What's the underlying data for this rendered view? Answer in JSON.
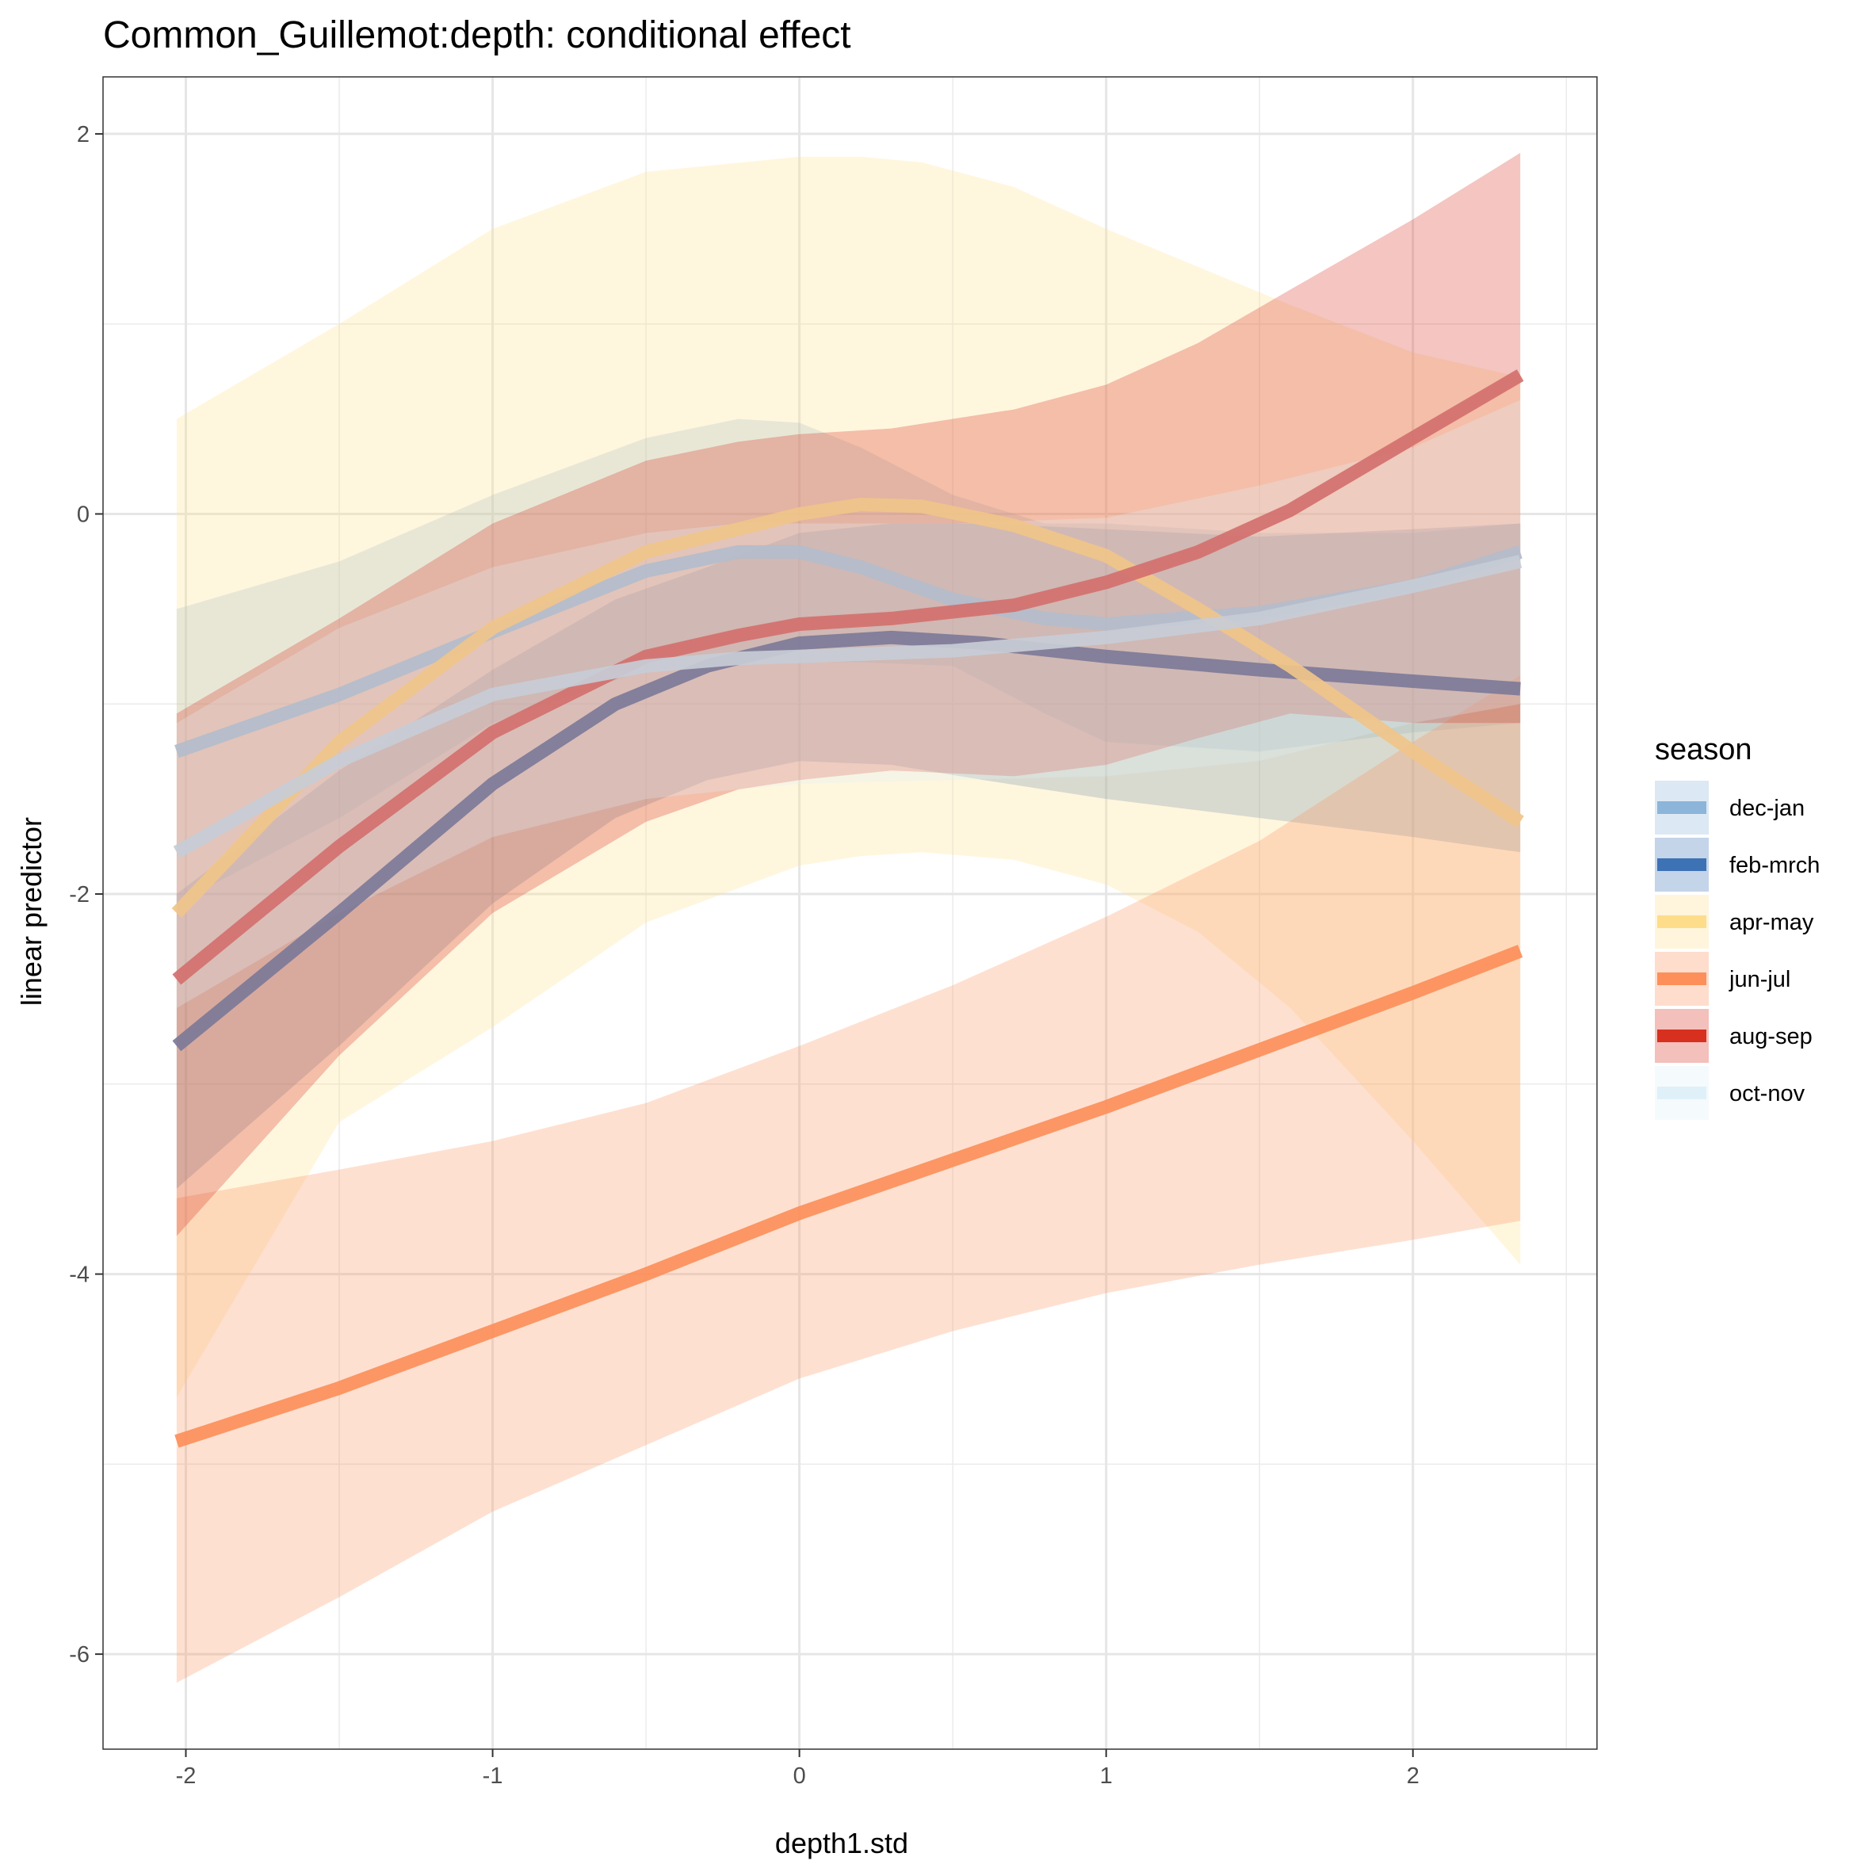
{
  "chart_data": {
    "type": "line",
    "title": "Common_Guillemot:depth: conditional effect",
    "xlabel": "depth1.std",
    "ylabel": "linear predictor",
    "xlim": [
      -2.27,
      2.6
    ],
    "ylim": [
      -6.5,
      2.3
    ],
    "x_ticks": [
      -2,
      -1,
      0,
      1,
      2
    ],
    "x_tick_labels": [
      "-2",
      "-1",
      "0",
      "1",
      "2"
    ],
    "y_ticks": [
      2,
      0,
      -2,
      -4,
      -6
    ],
    "y_tick_labels": [
      "2",
      "0",
      "-2",
      "-4",
      "-6"
    ],
    "grid": true,
    "legend": {
      "title": "season",
      "position": "right",
      "entries": [
        "dec-jan",
        "feb-mrch",
        "apr-may",
        "jun-jul",
        "aug-sep",
        "oct-nov"
      ]
    },
    "series": [
      {
        "name": "dec-jan",
        "color": "#8cb5d9",
        "line_color": "#b3bccb",
        "x": [
          -2.03,
          -1.5,
          -1.0,
          -0.5,
          -0.2,
          0.0,
          0.2,
          0.5,
          0.8,
          1.0,
          1.5,
          2.0,
          2.35
        ],
        "y": [
          -1.25,
          -0.95,
          -0.62,
          -0.3,
          -0.2,
          -0.2,
          -0.28,
          -0.45,
          -0.55,
          -0.58,
          -0.52,
          -0.38,
          -0.2
        ],
        "lower": [
          -2.05,
          -1.6,
          -1.1,
          -0.82,
          -0.78,
          -0.78,
          -0.78,
          -0.8,
          -1.05,
          -1.2,
          -1.25,
          -1.15,
          -1.1
        ],
        "upper": [
          -0.5,
          -0.25,
          0.1,
          0.4,
          0.5,
          0.48,
          0.35,
          0.1,
          -0.05,
          -0.05,
          -0.1,
          -0.1,
          -0.05
        ]
      },
      {
        "name": "feb-mrch",
        "color": "#3d72b5",
        "line_color": "#7d7a98",
        "x": [
          -2.03,
          -1.5,
          -1.0,
          -0.6,
          -0.3,
          0.0,
          0.3,
          0.6,
          1.0,
          1.5,
          2.0,
          2.35
        ],
        "y": [
          -2.8,
          -2.1,
          -1.42,
          -1.0,
          -0.8,
          -0.68,
          -0.65,
          -0.68,
          -0.75,
          -0.82,
          -0.88,
          -0.92
        ],
        "lower": [
          -3.55,
          -2.8,
          -2.05,
          -1.6,
          -1.4,
          -1.3,
          -1.32,
          -1.4,
          -1.5,
          -1.6,
          -1.7,
          -1.78
        ],
        "upper": [
          -2.0,
          -1.35,
          -0.82,
          -0.45,
          -0.28,
          -0.1,
          -0.05,
          -0.05,
          -0.08,
          -0.12,
          -0.08,
          -0.05
        ]
      },
      {
        "name": "apr-may",
        "color": "#fedd8a",
        "line_color": "#f0c48a",
        "x": [
          -2.03,
          -1.5,
          -1.0,
          -0.5,
          0.0,
          0.2,
          0.4,
          0.7,
          1.0,
          1.3,
          1.6,
          2.0,
          2.35
        ],
        "y": [
          -2.1,
          -1.2,
          -0.6,
          -0.2,
          0.0,
          0.05,
          0.04,
          -0.06,
          -0.22,
          -0.5,
          -0.8,
          -1.25,
          -1.62
        ],
        "lower": [
          -4.65,
          -3.2,
          -2.7,
          -2.15,
          -1.85,
          -1.8,
          -1.78,
          -1.82,
          -1.95,
          -2.2,
          -2.6,
          -3.3,
          -3.95
        ],
        "upper": [
          0.5,
          1.0,
          1.5,
          1.8,
          1.88,
          1.88,
          1.85,
          1.72,
          1.5,
          1.3,
          1.1,
          0.85,
          0.72
        ]
      },
      {
        "name": "jun-jul",
        "color": "#fc8f5a",
        "line_color": "#fc8f5a",
        "x": [
          -2.03,
          -1.5,
          -1.0,
          -0.5,
          0.0,
          0.5,
          1.0,
          1.5,
          2.0,
          2.35
        ],
        "y": [
          -4.88,
          -4.6,
          -4.3,
          -4.0,
          -3.68,
          -3.4,
          -3.12,
          -2.82,
          -2.52,
          -2.3
        ],
        "lower": [
          -6.15,
          -5.7,
          -5.25,
          -4.9,
          -4.55,
          -4.3,
          -4.1,
          -3.95,
          -3.82,
          -3.72
        ],
        "upper": [
          -3.6,
          -3.45,
          -3.3,
          -3.1,
          -2.8,
          -2.48,
          -2.12,
          -1.72,
          -1.2,
          -0.85
        ]
      },
      {
        "name": "aug-sep",
        "color": "#d7301f",
        "line_color": "#d2706e",
        "x": [
          -2.03,
          -1.5,
          -1.0,
          -0.5,
          -0.2,
          0.0,
          0.3,
          0.7,
          1.0,
          1.3,
          1.6,
          2.0,
          2.35
        ],
        "y": [
          -2.45,
          -1.75,
          -1.15,
          -0.75,
          -0.64,
          -0.58,
          -0.55,
          -0.48,
          -0.36,
          -0.2,
          0.02,
          0.4,
          0.73
        ],
        "lower": [
          -3.8,
          -2.85,
          -2.1,
          -1.62,
          -1.45,
          -1.4,
          -1.35,
          -1.38,
          -1.32,
          -1.18,
          -1.05,
          -1.1,
          -1.1
        ],
        "upper": [
          -1.05,
          -0.55,
          -0.05,
          0.28,
          0.38,
          0.42,
          0.45,
          0.55,
          0.68,
          0.9,
          1.18,
          1.55,
          1.9
        ]
      },
      {
        "name": "oct-nov",
        "color": "#dff0f8",
        "line_color": "#c7ccd6",
        "x": [
          -2.03,
          -1.5,
          -1.0,
          -0.5,
          -0.2,
          0.0,
          0.5,
          1.0,
          1.5,
          2.0,
          2.35
        ],
        "y": [
          -1.78,
          -1.3,
          -0.95,
          -0.8,
          -0.76,
          -0.75,
          -0.72,
          -0.65,
          -0.55,
          -0.38,
          -0.25
        ],
        "lower": [
          -2.6,
          -2.1,
          -1.7,
          -1.5,
          -1.45,
          -1.42,
          -1.4,
          -1.38,
          -1.3,
          -1.1,
          -1.0
        ],
        "upper": [
          -1.1,
          -0.6,
          -0.28,
          -0.1,
          -0.05,
          -0.05,
          -0.05,
          -0.02,
          0.15,
          0.35,
          0.6
        ]
      }
    ]
  }
}
